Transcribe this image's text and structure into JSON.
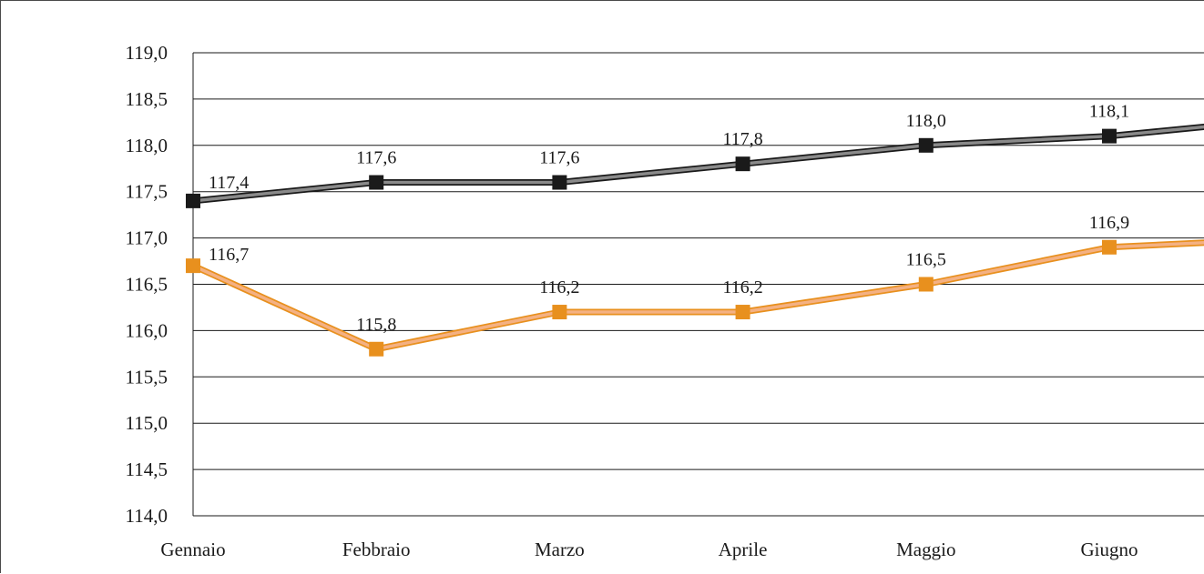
{
  "chart_data": {
    "type": "line",
    "categories": [
      "Gennaio",
      "Febbraio",
      "Marzo",
      "Aprile",
      "Maggio",
      "Giugno"
    ],
    "ylim": [
      114.0,
      119.0
    ],
    "yticks": [
      "114,0",
      "114,5",
      "115,0",
      "115,5",
      "116,0",
      "116,5",
      "117,0",
      "117,5",
      "118,0",
      "118,5",
      "119,0"
    ],
    "grid": true,
    "series": [
      {
        "values": [
          117.4,
          117.6,
          117.6,
          117.8,
          118.0,
          118.1
        ],
        "labels": [
          "117,4",
          "117,6",
          "117,6",
          "117,8",
          "118,0",
          "118,1"
        ],
        "line_color": "#8a8a8a",
        "marker_color": "#1a1a1a",
        "continues_to_value": 118.2
      },
      {
        "values": [
          116.7,
          115.8,
          116.2,
          116.2,
          116.5,
          116.9
        ],
        "labels": [
          "116,7",
          "115,8",
          "116,2",
          "116,2",
          "116,5",
          "116,9"
        ],
        "line_color": "#f4b183",
        "marker_color": "#e8901e",
        "continues_to_value": 116.95
      }
    ]
  }
}
